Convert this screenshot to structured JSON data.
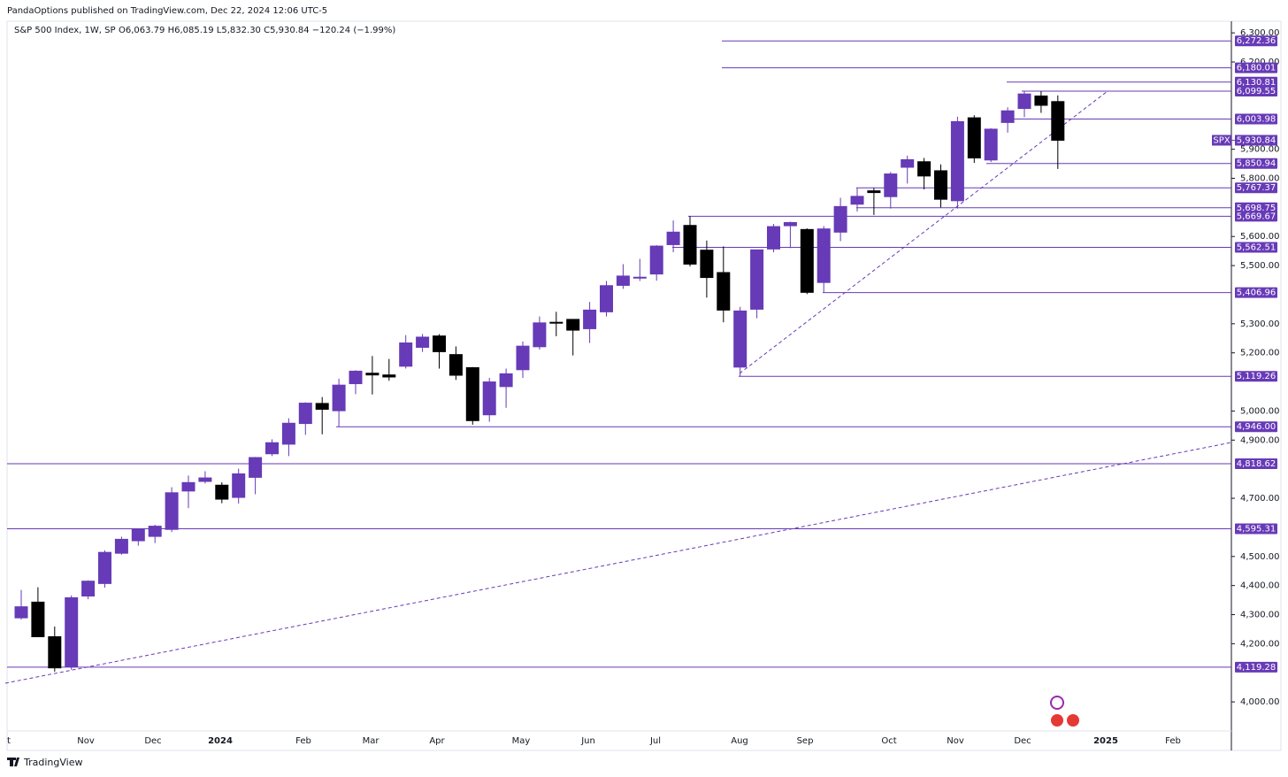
{
  "chart_data": {
    "type": "candlestick",
    "published": "PandaOptions published on TradingView.com, Dec 22, 2024 12:06 UTC-5",
    "title": "S&P 500 Index, 1W, SP",
    "ohlc_text": "O6,063.79 H6,085.19 L5,832.30 C5,930.84 −120.24 (−1.99%)",
    "symbol": "SPX",
    "last_price": 5930.84,
    "last_price_label": "5,930.84",
    "footer": "TradingView",
    "x_labels": [
      "t",
      "Nov",
      "Dec",
      "2024",
      "Feb",
      "Mar",
      "Apr",
      "May",
      "Jun",
      "Jul",
      "Aug",
      "Sep",
      "Oct",
      "Nov",
      "Dec",
      "2025",
      "Feb"
    ],
    "up_color": "#673ab7",
    "down_color": "#000000",
    "ylim": [
      3900,
      6340
    ],
    "yticks": [
      {
        "value": 6300,
        "label": "6,300.00"
      },
      {
        "value": 6200,
        "label": "6,200.00"
      },
      {
        "value": 5900,
        "label": "5,900.00"
      },
      {
        "value": 5800,
        "label": "5,800.00"
      },
      {
        "value": 5600,
        "label": "5,600.00"
      },
      {
        "value": 5500,
        "label": "5,500.00"
      },
      {
        "value": 5300,
        "label": "5,300.00"
      },
      {
        "value": 5200,
        "label": "5,200.00"
      },
      {
        "value": 5000,
        "label": "5,000.00"
      },
      {
        "value": 4900,
        "label": "4,900.00"
      },
      {
        "value": 4700,
        "label": "4,700.00"
      },
      {
        "value": 4500,
        "label": "4,500.00"
      },
      {
        "value": 4400,
        "label": "4,400.00"
      },
      {
        "value": 4300,
        "label": "4,300.00"
      },
      {
        "value": 4200,
        "label": "4,200.00"
      },
      {
        "value": 4000,
        "label": "4,000.00"
      }
    ],
    "levels": [
      6272.36,
      6180.01,
      6130.81,
      6099.55,
      6003.98,
      5850.94,
      5767.37,
      5698.75,
      5669.67,
      5562.51,
      5406.96,
      5119.26,
      4946.0,
      4818.62,
      4595.31,
      4119.28
    ],
    "level_labels": [
      "6,272.36",
      "6,180.01",
      "6,130.81",
      "6,099.55",
      "6,003.98",
      "5,850.94",
      "5,767.37",
      "5,698.75",
      "5,669.67",
      "5,562.51",
      "5,406.96",
      "5,119.26",
      "4,946.00",
      "4,818.62",
      "4,595.31",
      "4,119.28"
    ],
    "open": [
      4289,
      4343,
      4224,
      4121,
      4364,
      4407,
      4511,
      4554,
      4569,
      4593,
      4725,
      4758,
      4745,
      4703,
      4772,
      4853,
      4886,
      4957,
      5026,
      5001,
      5094,
      5130,
      5124,
      5154,
      5219,
      5258,
      5194,
      5149,
      4987,
      5084,
      5142,
      5221,
      5305,
      5315,
      5283,
      5341,
      5432,
      5460,
      5471,
      5572,
      5638,
      5553,
      5476,
      5151,
      5350,
      5557,
      5637,
      5624,
      5442,
      5615,
      5711,
      5757,
      5737,
      5838,
      5857,
      5826,
      5723,
      6008,
      5863,
      5992,
      6040,
      6083,
      6063.79
    ],
    "high": [
      4385,
      4394,
      4259,
      4366,
      4418,
      4521,
      4568,
      4595,
      4609,
      4738,
      4778,
      4793,
      4755,
      4802,
      4842,
      4903,
      4975,
      5030,
      5048,
      5111,
      5140,
      5189,
      5179,
      5261,
      5265,
      5264,
      5222,
      5151,
      5114,
      5146,
      5239,
      5325,
      5341,
      5315,
      5375,
      5447,
      5505,
      5523,
      5570,
      5655,
      5670,
      5586,
      5566,
      5358,
      5555,
      5643,
      5651,
      5628,
      5636,
      5733,
      5767,
      5767,
      5822,
      5878,
      5870,
      5848,
      6012,
      6017,
      5972,
      6044,
      6099,
      6099,
      6085.19
    ],
    "low": [
      4283,
      4223,
      4104,
      4111,
      4353,
      4393,
      4506,
      4537,
      4546,
      4584,
      4666,
      4751,
      4683,
      4682,
      4714,
      4845,
      4845,
      4918,
      4920,
      4946,
      5058,
      5057,
      5104,
      5146,
      5203,
      5146,
      5107,
      4953,
      4963,
      5011,
      5114,
      5211,
      5257,
      5191,
      5234,
      5325,
      5420,
      5447,
      5448,
      5546,
      5497,
      5390,
      5305,
      5119,
      5319,
      5546,
      5560,
      5402,
      5406,
      5584,
      5686,
      5674,
      5696,
      5782,
      5762,
      5700,
      5696,
      5853,
      5856,
      5957,
      6010,
      6025,
      5832.3
    ],
    "close": [
      4327,
      4224,
      4117,
      4358,
      4415,
      4514,
      4559,
      4595,
      4604,
      4719,
      4754,
      4770,
      4697,
      4784,
      4840,
      4891,
      4958,
      5027,
      5006,
      5089,
      5137,
      5124,
      5117,
      5234,
      5254,
      5204,
      5123,
      4967,
      5100,
      5128,
      5223,
      5303,
      5304,
      5278,
      5347,
      5431,
      5464,
      5460,
      5567,
      5615,
      5505,
      5459,
      5347,
      5344,
      5554,
      5634,
      5648,
      5408,
      5626,
      5703,
      5738,
      5751,
      5815,
      5864,
      5808,
      5728,
      5995,
      5870,
      5969,
      6032,
      6090,
      6051,
      5930.84
    ]
  }
}
